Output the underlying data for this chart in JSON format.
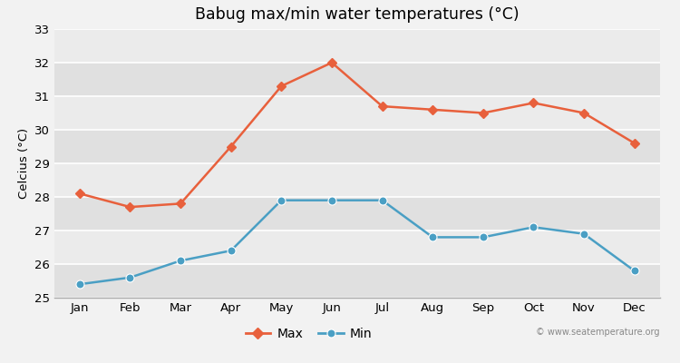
{
  "months": [
    "Jan",
    "Feb",
    "Mar",
    "Apr",
    "May",
    "Jun",
    "Jul",
    "Aug",
    "Sep",
    "Oct",
    "Nov",
    "Dec"
  ],
  "max_temps": [
    28.1,
    27.7,
    27.8,
    29.5,
    31.3,
    32.0,
    30.7,
    30.6,
    30.5,
    30.8,
    30.5,
    29.6
  ],
  "min_temps": [
    25.4,
    25.6,
    26.1,
    26.4,
    27.9,
    27.9,
    27.9,
    26.8,
    26.8,
    27.1,
    26.9,
    25.8
  ],
  "max_color": "#e8603c",
  "min_color": "#4a9fc4",
  "title": "Babug max/min water temperatures (°C)",
  "ylabel": "Celcius (°C)",
  "ylim": [
    25,
    33
  ],
  "yticks": [
    25,
    26,
    27,
    28,
    29,
    30,
    31,
    32,
    33
  ],
  "outer_bg": "#f2f2f2",
  "band_light": "#ebebeb",
  "band_dark": "#e0e0e0",
  "grid_color": "#ffffff",
  "watermark": "© www.seatemperature.org",
  "legend_max": "Max",
  "legend_min": "Min"
}
